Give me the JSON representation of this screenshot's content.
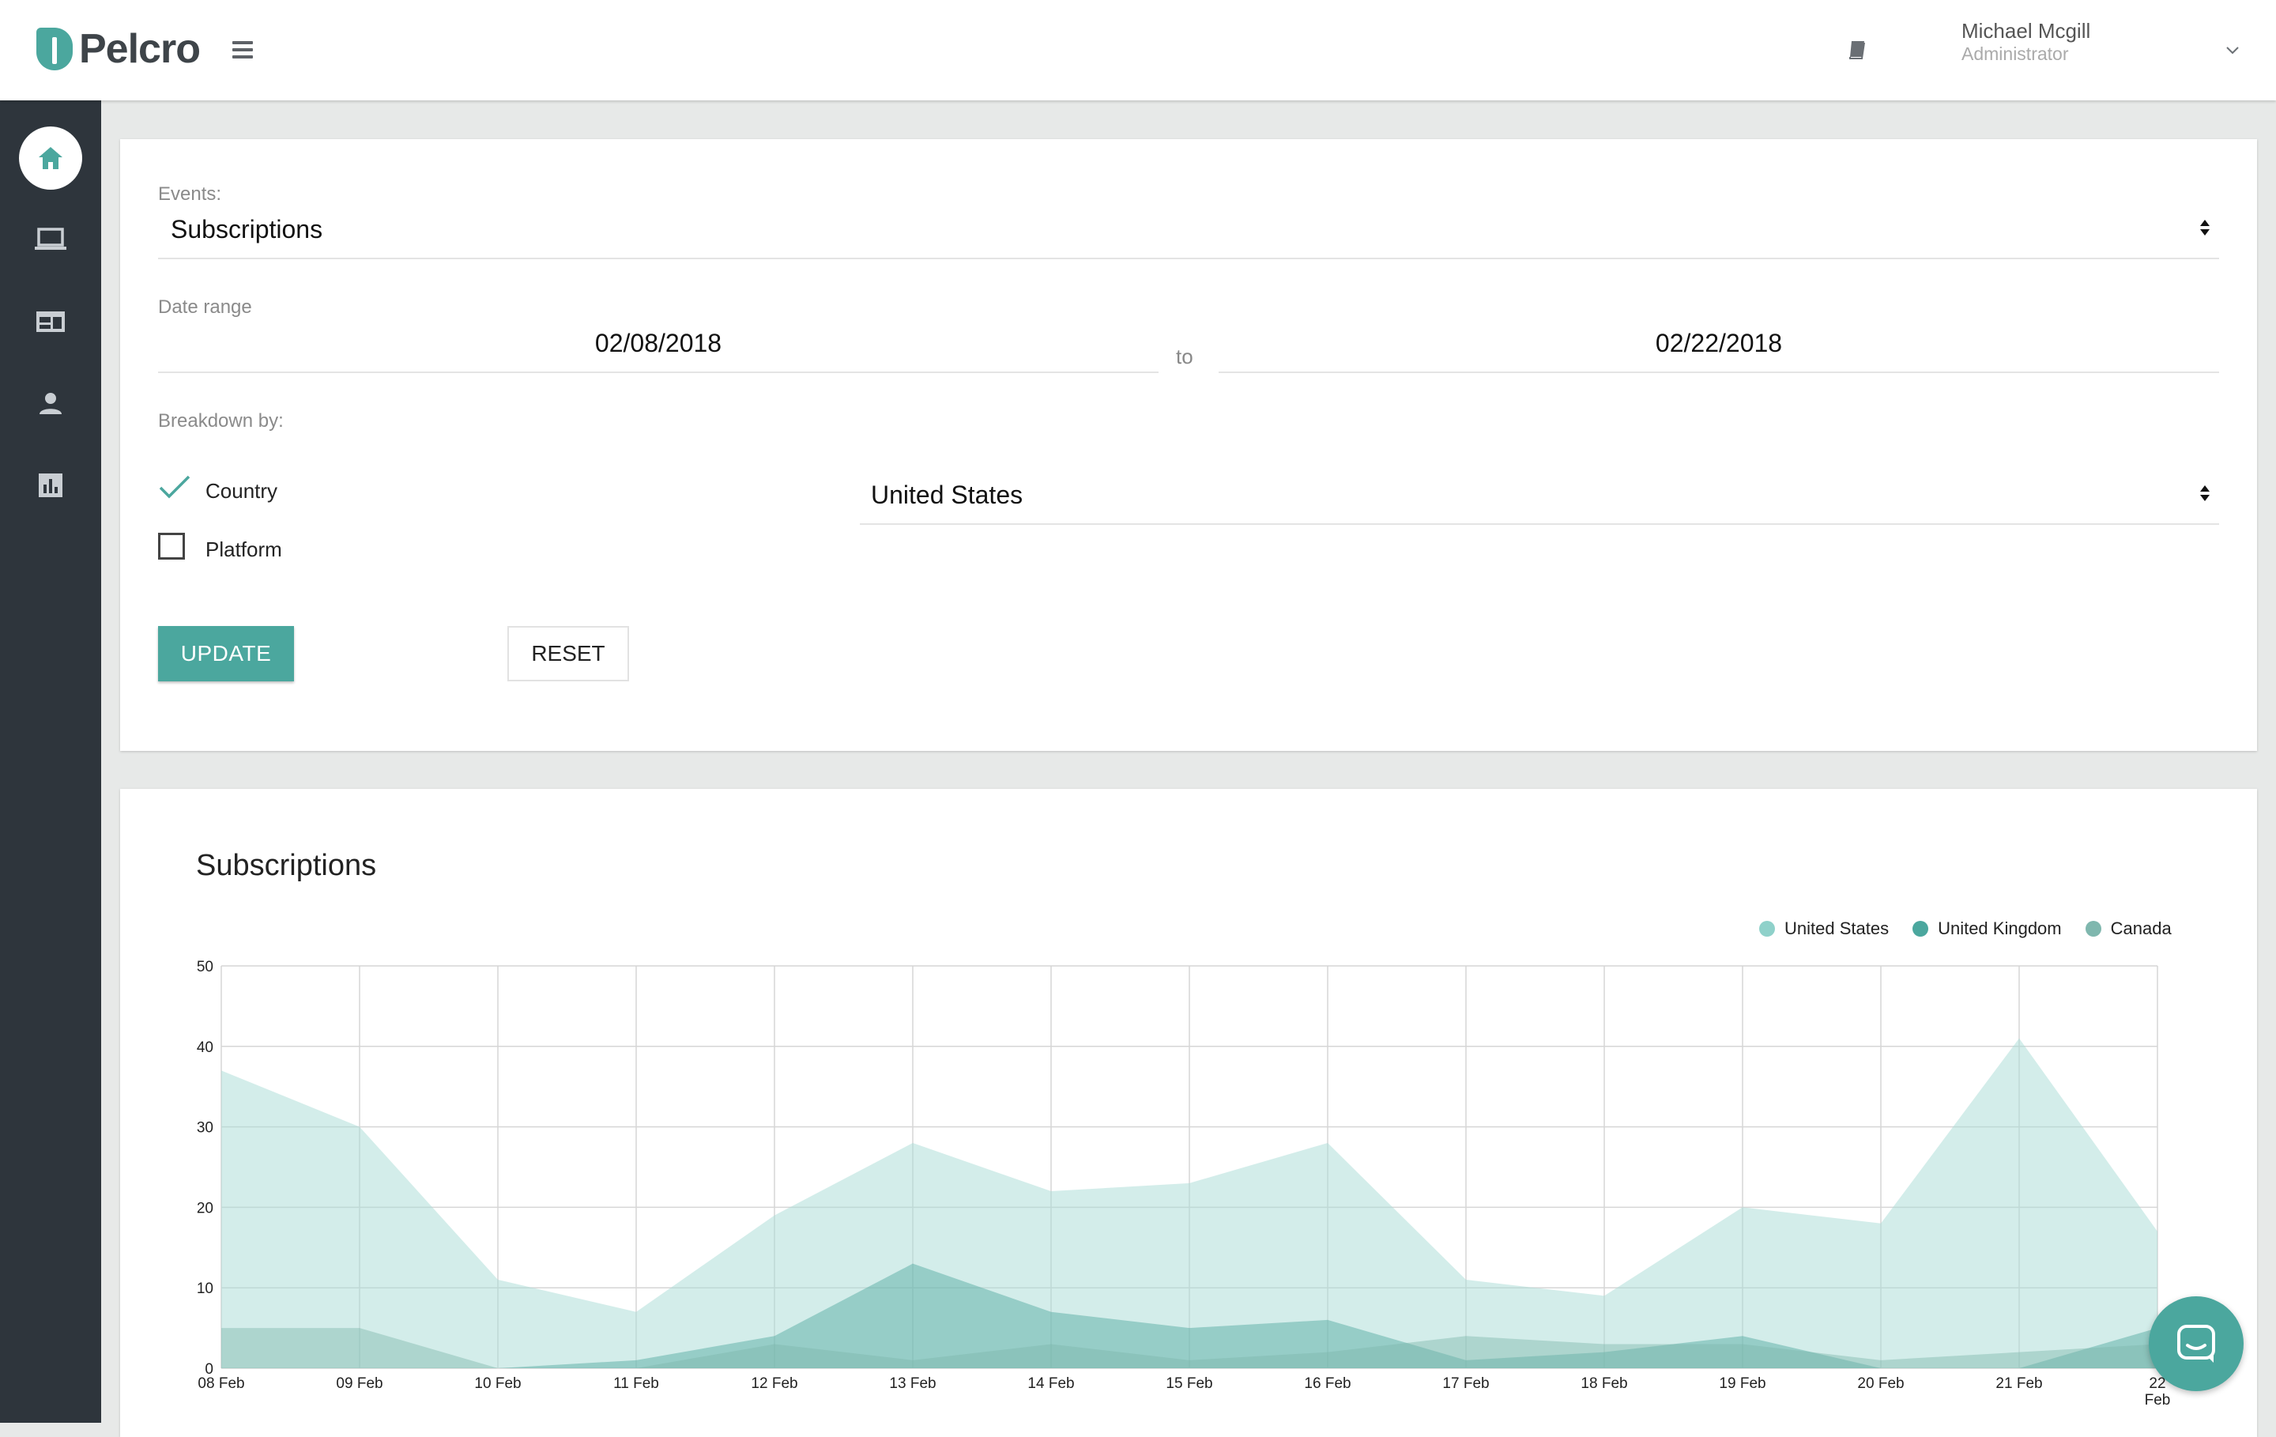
{
  "header": {
    "brand": "Pelcro",
    "user_name": "Michael Mcgill",
    "user_role": "Administrator",
    "icons": [
      "menu-icon",
      "book-icon",
      "chevron-down-icon"
    ]
  },
  "sidebar": {
    "items": [
      {
        "icon": "home-icon",
        "active": true
      },
      {
        "icon": "laptop-icon",
        "active": false
      },
      {
        "icon": "layout-icon",
        "active": false
      },
      {
        "icon": "person-icon",
        "active": false
      },
      {
        "icon": "chart-icon",
        "active": false
      }
    ]
  },
  "filters": {
    "events_label": "Events:",
    "events_value": "Subscriptions",
    "date_range_label": "Date range",
    "date_from": "02/08/2018",
    "date_to_label": "to",
    "date_to": "02/22/2018",
    "breakdown_label": "Breakdown by:",
    "country_label": "Country",
    "country_checked": true,
    "platform_label": "Platform",
    "platform_checked": false,
    "country_value": "United States",
    "update_label": "UPDATE",
    "reset_label": "RESET"
  },
  "colors": {
    "accent": "#4ba79e",
    "sidebar": "#2e353c",
    "series_us": "#a8dbd6",
    "series_uk": "#4ba79e",
    "series_ca": "#7fb7ae"
  },
  "chart_data": {
    "type": "area",
    "title": "Subscriptions",
    "categories": [
      "08 Feb",
      "09 Feb",
      "10 Feb",
      "11 Feb",
      "12 Feb",
      "13 Feb",
      "14 Feb",
      "15 Feb",
      "16 Feb",
      "17 Feb",
      "18 Feb",
      "19 Feb",
      "20 Feb",
      "21 Feb",
      "22 Feb"
    ],
    "series": [
      {
        "name": "United States",
        "values": [
          37,
          30,
          11,
          7,
          19,
          28,
          22,
          23,
          28,
          11,
          9,
          20,
          18,
          41,
          17
        ]
      },
      {
        "name": "United Kingdom",
        "values": [
          0,
          0,
          0,
          1,
          4,
          13,
          7,
          5,
          6,
          1,
          2,
          4,
          0,
          0,
          5
        ]
      },
      {
        "name": "Canada",
        "values": [
          5,
          5,
          0,
          0,
          3,
          1,
          3,
          1,
          2,
          4,
          3,
          3,
          1,
          2,
          3
        ]
      }
    ],
    "ylim": [
      0,
      50
    ],
    "yticks": [
      0,
      10,
      20,
      30,
      40,
      50
    ],
    "grid": true,
    "legend_position": "top-right"
  }
}
